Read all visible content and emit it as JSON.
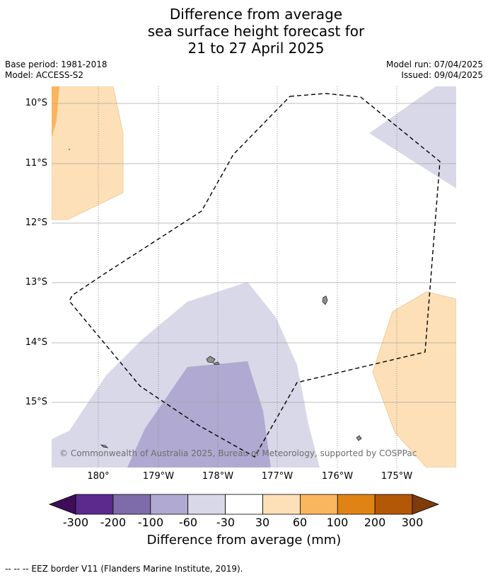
{
  "title_lines": [
    "Difference from average",
    "sea surface height forecast for",
    "21 to 27 April 2025"
  ],
  "base_period": "Base period: 1981-2018",
  "model": "Model: ACCESS-S2",
  "model_run": "Model run: 07/04/2025",
  "issued": "Issued: 09/04/2025",
  "lat_labels": [
    "10°S",
    "11°S",
    "12°S",
    "13°S",
    "14°S",
    "15°S"
  ],
  "lon_labels": [
    "180°",
    "179°W",
    "178°W",
    "177°W",
    "176°W",
    "175°W"
  ],
  "copyright": "© Commonwealth of Australia 2025, Bureau of Meteorology, supported by COSPPac",
  "colorbar": {
    "labels": [
      "-300",
      "-200",
      "-100",
      "-60",
      "-30",
      "30",
      "60",
      "100",
      "200",
      "300"
    ],
    "title": "Difference from average (mm)",
    "colors": {
      "below_-300": "#3f0d58",
      "-300_-200": "#5b2a8c",
      "-200_-100": "#7d6ca9",
      "-100_-60": "#b0a9d1",
      "-60_-30": "#d8d8e9",
      "-30_30": "#ffffff",
      "30_60": "#fde0b7",
      "60_100": "#f9b65e",
      "100_200": "#e08315",
      "200_300": "#b35806",
      "above_300": "#7f3b08"
    }
  },
  "eez_note": "-- -- -- EEZ border V11 (Flanders Marine Institute, 2019)."
}
